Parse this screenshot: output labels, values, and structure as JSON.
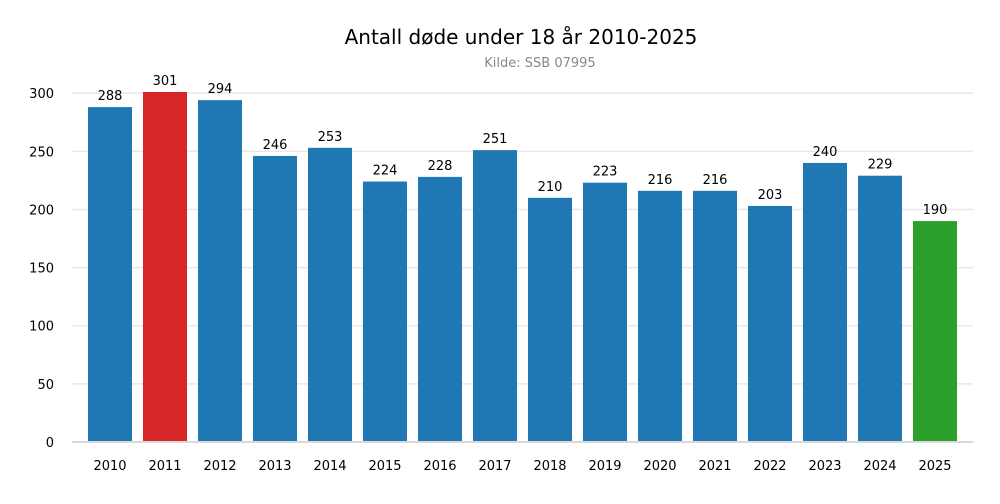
{
  "chart_data": {
    "type": "bar",
    "title": "Antall døde under 18 år 2010-2025",
    "subtitle": "Kilde: SSB 07995",
    "xlabel": "",
    "ylabel": "",
    "categories": [
      "2010",
      "2011",
      "2012",
      "2013",
      "2014",
      "2015",
      "2016",
      "2017",
      "2018",
      "2019",
      "2020",
      "2021",
      "2022",
      "2023",
      "2024",
      "2025"
    ],
    "values": [
      288,
      301,
      294,
      246,
      253,
      224,
      228,
      251,
      210,
      223,
      216,
      216,
      203,
      240,
      229,
      190
    ],
    "bar_colors": [
      "#1f77b4",
      "#d62728",
      "#1f77b4",
      "#1f77b4",
      "#1f77b4",
      "#1f77b4",
      "#1f77b4",
      "#1f77b4",
      "#1f77b4",
      "#1f77b4",
      "#1f77b4",
      "#1f77b4",
      "#1f77b4",
      "#1f77b4",
      "#1f77b4",
      "#2ca02c"
    ],
    "ylim": [
      0,
      301
    ],
    "yticks": [
      0,
      50,
      100,
      150,
      200,
      250,
      300
    ],
    "grid": true,
    "legend": "none"
  }
}
